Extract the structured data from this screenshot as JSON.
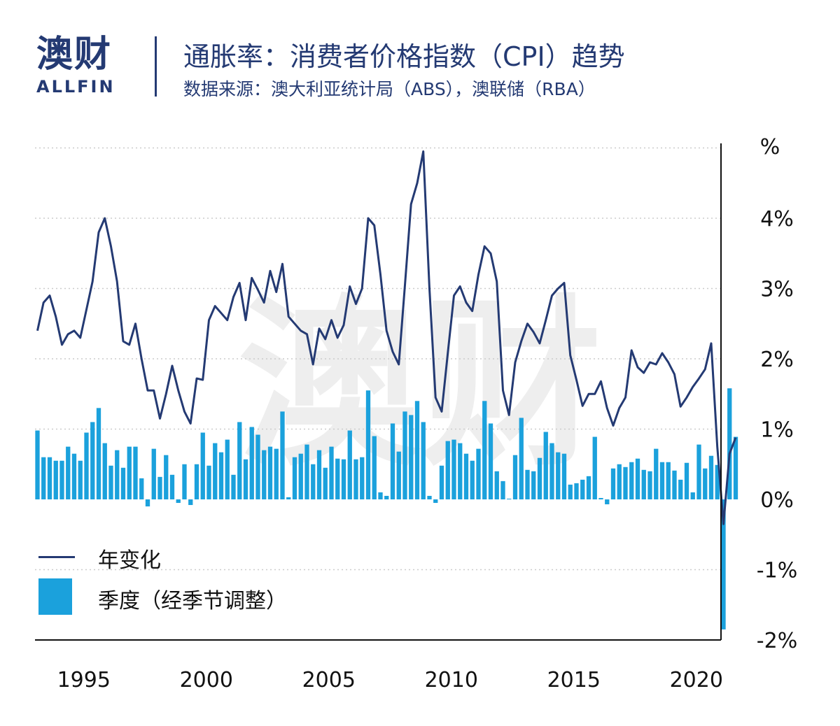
{
  "logo": {
    "cn": "澳财",
    "en": "ALLFIN"
  },
  "header": {
    "title": "通胀率：消费者价格指数（CPI）趋势",
    "subtitle": "数据来源：澳大利亚统计局（ABS），澳联储（RBA）"
  },
  "legend": {
    "line_label": "年变化",
    "bar_label": "季度（经季节调整）"
  },
  "colors": {
    "line": "#243a73",
    "bar": "#1ba1dc",
    "axis": "#111111",
    "grid": "#cccccc"
  },
  "chart_data": {
    "type": "bar+line",
    "y_unit_label": "%",
    "y_ticks": [
      "4%",
      "3%",
      "2%",
      "1%",
      "0%",
      "-1%",
      "-2%"
    ],
    "y_tick_values": [
      4,
      3,
      2,
      1,
      0,
      -1,
      -2
    ],
    "ylim": [
      -2,
      5
    ],
    "x_ticks": [
      "1995",
      "2000",
      "2005",
      "2010",
      "2015",
      "2020"
    ],
    "x_tick_values": [
      1995,
      2000,
      2005,
      2010,
      2015,
      2020
    ],
    "xlim": [
      1993.15,
      2021.15
    ],
    "grid": "horizontal-dotted",
    "legend_position": "bottom-left",
    "x_start": 1993.25,
    "x_step": 0.25,
    "series": [
      {
        "name": "年变化",
        "kind": "line",
        "values": [
          2.4,
          2.8,
          2.9,
          2.6,
          2.2,
          2.35,
          2.4,
          2.3,
          2.7,
          3.1,
          3.8,
          4.0,
          3.6,
          3.1,
          2.25,
          2.2,
          2.5,
          2.0,
          1.55,
          1.55,
          1.15,
          1.5,
          1.9,
          1.55,
          1.25,
          1.08,
          1.72,
          1.7,
          2.55,
          2.75,
          2.65,
          2.55,
          2.88,
          3.08,
          2.55,
          3.15,
          2.98,
          2.8,
          3.25,
          2.95,
          3.35,
          2.6,
          2.5,
          2.4,
          2.35,
          1.92,
          2.43,
          2.28,
          2.55,
          2.3,
          2.48,
          3.03,
          2.78,
          3.0,
          4.0,
          3.9,
          3.2,
          2.4,
          2.1,
          1.92,
          3.05,
          4.2,
          4.5,
          4.95,
          3.0,
          1.45,
          1.25,
          2.08,
          2.9,
          3.03,
          2.8,
          2.68,
          3.2,
          3.6,
          3.5,
          3.1,
          1.55,
          1.2,
          1.95,
          2.25,
          2.5,
          2.38,
          2.22,
          2.55,
          2.9,
          3.0,
          3.08,
          2.05,
          1.7,
          1.33,
          1.5,
          1.5,
          1.68,
          1.3,
          1.05,
          1.3,
          1.45,
          2.12,
          1.88,
          1.8,
          1.95,
          1.92,
          2.08,
          1.95,
          1.78,
          1.32,
          1.45,
          1.6,
          1.72,
          1.85,
          2.22,
          0.75,
          -0.35,
          0.65,
          0.88
        ]
      },
      {
        "name": "季度（经季节调整）",
        "kind": "bar",
        "values": [
          0.98,
          0.6,
          0.6,
          0.55,
          0.55,
          0.75,
          0.65,
          0.55,
          0.95,
          1.1,
          1.3,
          0.8,
          0.48,
          0.7,
          0.45,
          0.75,
          0.75,
          0.3,
          -0.1,
          0.72,
          0.32,
          0.63,
          0.35,
          -0.05,
          0.5,
          -0.08,
          0.5,
          0.95,
          0.48,
          0.8,
          0.67,
          0.85,
          0.35,
          1.1,
          0.57,
          1.03,
          0.92,
          0.7,
          0.75,
          0.72,
          1.25,
          0.03,
          0.6,
          0.65,
          0.78,
          0.5,
          0.7,
          0.45,
          0.75,
          0.58,
          0.57,
          0.98,
          0.57,
          0.6,
          1.55,
          0.9,
          0.1,
          0.05,
          1.08,
          0.68,
          1.25,
          1.2,
          1.4,
          1.1,
          0.05,
          -0.05,
          0.48,
          0.83,
          0.85,
          0.8,
          0.65,
          0.55,
          0.72,
          1.4,
          1.08,
          0.4,
          0.26,
          0.01,
          0.63,
          1.16,
          0.42,
          0.4,
          0.59,
          0.96,
          0.8,
          0.67,
          0.65,
          0.21,
          0.23,
          0.28,
          0.33,
          0.89,
          0.02,
          -0.07,
          0.44,
          0.5,
          0.46,
          0.53,
          0.58,
          0.42,
          0.4,
          0.72,
          0.53,
          0.53,
          0.41,
          0.28,
          0.52,
          0.1,
          0.78,
          0.44,
          0.62,
          0.49,
          -1.85,
          1.58,
          0.89
        ]
      }
    ]
  }
}
